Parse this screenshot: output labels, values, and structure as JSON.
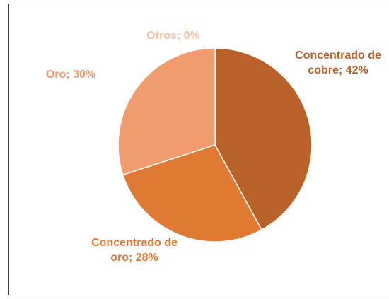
{
  "chart_data": {
    "type": "pie",
    "categories": [
      "Concentrado de cobre",
      "Concentrado de oro",
      "Oro",
      "Otros"
    ],
    "values": [
      42,
      28,
      30,
      0
    ],
    "value_labels": [
      "; 42%",
      "; 28%",
      "; 30%",
      "; 0%"
    ],
    "colors": [
      "#b8622a",
      "#e07a32",
      "#f09c6e",
      "#f6c3a4"
    ]
  }
}
